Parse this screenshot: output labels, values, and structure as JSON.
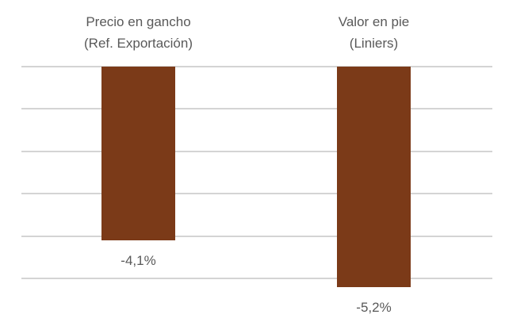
{
  "chart_data": {
    "type": "bar",
    "orientation": "vertical",
    "title": "",
    "xlabel": "",
    "ylabel": "",
    "categories": [
      "Precio en gancho (Ref. Exportación)",
      "Valor en pie (Liniers)"
    ],
    "category_lines": [
      [
        "Precio en gancho",
        "(Ref. Exportación)"
      ],
      [
        "Valor en pie",
        "(Liniers)"
      ]
    ],
    "values": [
      -4.1,
      -5.2
    ],
    "data_labels": [
      "-4,1%",
      "-5,2%"
    ],
    "unit": "%",
    "ylim": [
      -5,
      0
    ],
    "gridlines": [
      0,
      -1,
      -2,
      -3,
      -4,
      -5
    ],
    "grid": true,
    "axis_tick_labels_visible": false,
    "category_labels_position": "top",
    "legend": null,
    "colors": {
      "bar": "#7B3A18",
      "gridline": "#D4D4D4",
      "text": "#595959",
      "background": "#FFFFFF"
    }
  }
}
